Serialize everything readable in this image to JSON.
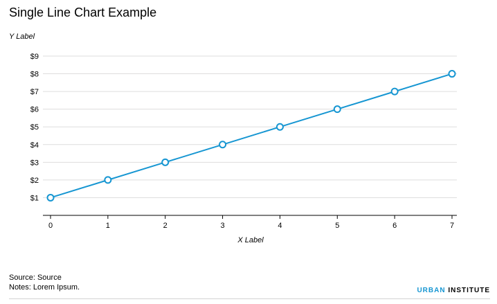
{
  "chart_data": {
    "type": "line",
    "title": "Single Line Chart Example",
    "ylabel": "Y Label",
    "xlabel": "X Label",
    "x": [
      0,
      1,
      2,
      3,
      4,
      5,
      6,
      7
    ],
    "series": [
      {
        "values": [
          1,
          2,
          3,
          4,
          5,
          6,
          7,
          8
        ]
      }
    ],
    "xlim": [
      0,
      7
    ],
    "ylim": [
      0,
      9
    ],
    "xticks": [
      "0",
      "1",
      "2",
      "3",
      "4",
      "5",
      "6",
      "7"
    ],
    "yticks": [
      "$1",
      "$2",
      "$3",
      "$4",
      "$5",
      "$6",
      "$7",
      "$8",
      "$9"
    ],
    "grid": "horizontal",
    "line_color": "#1696d2",
    "grid_color": "#dedddd",
    "markers": "hollow-circle"
  },
  "footer": {
    "source": "Source: Source",
    "notes": "Notes: Lorem Ipsum."
  },
  "brand": {
    "part1": "URBAN",
    "part2": " INSTITUTE"
  }
}
